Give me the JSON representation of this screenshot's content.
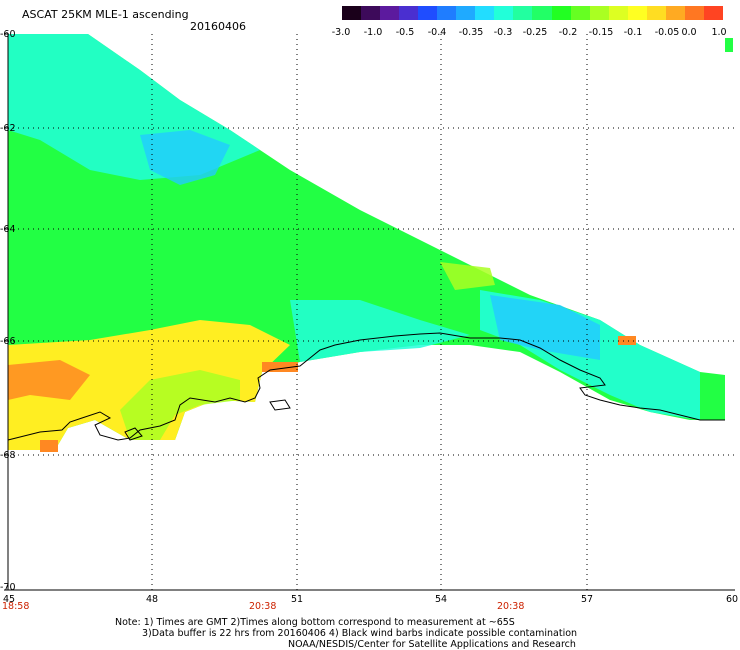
{
  "title": "ASCAT 25KM MLE-1 ascending",
  "date": "20160406",
  "colorbar": {
    "labels": [
      "-3.0",
      "-1.0",
      "-0.5",
      "-0.4",
      "-0.35",
      "-0.3",
      "-0.25",
      "-0.2",
      "-0.15",
      "-0.1",
      "-0.05",
      "0.0",
      "1.0"
    ],
    "colors": [
      "#1a001a",
      "#3d0a5a",
      "#5c1a9e",
      "#4a2fd0",
      "#1f4dff",
      "#1f7dff",
      "#1faaff",
      "#22ddff",
      "#22ffd9",
      "#22ffa0",
      "#22ff66",
      "#22ff22",
      "#66ff22",
      "#aaff22",
      "#ddff22",
      "#ffff22",
      "#ffdd22",
      "#ffaa22",
      "#ff7722",
      "#ff4422"
    ]
  },
  "axes": {
    "lat_labels": [
      "-60",
      "-62",
      "-64",
      "-66",
      "-68",
      "-70"
    ],
    "lon_labels": [
      "45",
      "48",
      "51",
      "54",
      "57",
      "60"
    ],
    "time_labels": [
      "18:58",
      "20:38",
      "20:38"
    ]
  },
  "map": {
    "lat_range": [
      -70,
      -60
    ],
    "lon_range": [
      45,
      60
    ]
  },
  "notes": {
    "line1": "Note: 1) Times are GMT 2)Times along bottom correspond to measurement at ~65S",
    "line2": "3)Data buffer is 22 hrs from 20160406 4) Black wind barbs indicate possible contamination",
    "credit": "NOAA/NESDIS/Center for Satellite Applications and Research"
  }
}
